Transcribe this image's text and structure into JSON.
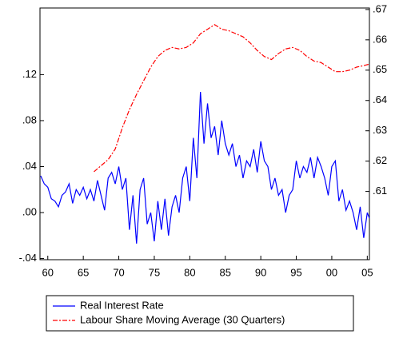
{
  "chart_data": {
    "type": "line",
    "xlim": [
      1958.9,
      2005.3
    ],
    "xticks": [
      {
        "value": 1960,
        "label": "60"
      },
      {
        "value": 1965,
        "label": "65"
      },
      {
        "value": 1970,
        "label": "70"
      },
      {
        "value": 1975,
        "label": "75"
      },
      {
        "value": 1980,
        "label": "80"
      },
      {
        "value": 1985,
        "label": "85"
      },
      {
        "value": 1990,
        "label": "90"
      },
      {
        "value": 1995,
        "label": "95"
      },
      {
        "value": 2000,
        "label": "00"
      },
      {
        "value": 2005,
        "label": "05"
      }
    ],
    "ylim": [
      -0.041,
      0.178
    ],
    "yticks": [
      {
        "value": -0.04,
        "label": "-.04"
      },
      {
        "value": 0,
        "label": ".00"
      },
      {
        "value": 0.04,
        "label": ".04"
      },
      {
        "value": 0.08,
        "label": ".08"
      },
      {
        "value": 0.12,
        "label": ".12"
      }
    ],
    "y2lim": [
      0.5875,
      0.6705
    ],
    "y2ticks": [
      {
        "value": 0.61,
        "label": ".61"
      },
      {
        "value": 0.62,
        "label": ".62"
      },
      {
        "value": 0.63,
        "label": ".63"
      },
      {
        "value": 0.64,
        "label": ".64"
      },
      {
        "value": 0.65,
        "label": ".65"
      },
      {
        "value": 0.66,
        "label": ".66"
      },
      {
        "value": 0.67,
        "label": ".67"
      }
    ],
    "series": [
      {
        "name": "Real Interest Rate",
        "color": "#0000ff",
        "x": [
          1959,
          1959.5,
          1960,
          1960.5,
          1961,
          1961.5,
          1962,
          1962.5,
          1963,
          1963.5,
          1964,
          1964.5,
          1965,
          1965.5,
          1966,
          1966.5,
          1967,
          1967.5,
          1968,
          1968.5,
          1969,
          1969.5,
          1970,
          1970.5,
          1971,
          1971.5,
          1972,
          1972.5,
          1973,
          1973.5,
          1974,
          1974.5,
          1975,
          1975.5,
          1976,
          1976.5,
          1977,
          1977.5,
          1978,
          1978.5,
          1979,
          1979.5,
          1980,
          1980.5,
          1981,
          1981.5,
          1982,
          1982.5,
          1983,
          1983.5,
          1984,
          1984.5,
          1985,
          1985.5,
          1986,
          1986.5,
          1987,
          1987.5,
          1988,
          1988.5,
          1989,
          1989.5,
          1990,
          1990.5,
          1991,
          1991.5,
          1992,
          1992.5,
          1993,
          1993.5,
          1994,
          1994.5,
          1995,
          1995.5,
          1996,
          1996.5,
          1997,
          1997.5,
          1998,
          1998.5,
          1999,
          1999.5,
          2000,
          2000.5,
          2001,
          2001.5,
          2002,
          2002.5,
          2003,
          2003.5,
          2004,
          2004.5,
          2005,
          2005.3
        ],
        "values": [
          0.032,
          0.025,
          0.022,
          0.012,
          0.01,
          0.005,
          0.015,
          0.018,
          0.025,
          0.008,
          0.02,
          0.015,
          0.022,
          0.012,
          0.02,
          0.01,
          0.028,
          0.015,
          0.002,
          0.03,
          0.035,
          0.025,
          0.04,
          0.02,
          0.03,
          -0.015,
          0.015,
          -0.027,
          0.02,
          0.03,
          -0.01,
          0.0,
          -0.025,
          0.01,
          -0.015,
          0.012,
          -0.02,
          0.005,
          0.015,
          0.0,
          0.03,
          0.04,
          0.01,
          0.065,
          0.03,
          0.105,
          0.06,
          0.095,
          0.065,
          0.075,
          0.05,
          0.08,
          0.06,
          0.05,
          0.06,
          0.04,
          0.05,
          0.03,
          0.045,
          0.04,
          0.055,
          0.035,
          0.062,
          0.045,
          0.04,
          0.02,
          0.03,
          0.015,
          0.02,
          0.0,
          0.015,
          0.02,
          0.045,
          0.03,
          0.04,
          0.035,
          0.048,
          0.03,
          0.048,
          0.04,
          0.03,
          0.015,
          0.04,
          0.045,
          0.01,
          0.02,
          0.002,
          0.01,
          0.0,
          -0.015,
          0.005,
          -0.022,
          0.0,
          -0.005
        ]
      },
      {
        "name": "Labour Share Moving Average (30 Quarters)",
        "color": "#ff0000",
        "axis": "y2",
        "dashed": true,
        "x": [
          1966.5,
          1967.5,
          1968.5,
          1969.5,
          1970.5,
          1971.5,
          1972.5,
          1973.5,
          1974.5,
          1975.5,
          1976.5,
          1977.5,
          1978.5,
          1979.5,
          1980.5,
          1981.5,
          1982.5,
          1983.5,
          1984.5,
          1985.5,
          1986.5,
          1987.5,
          1988.5,
          1989.5,
          1990.5,
          1991.5,
          1992.5,
          1993.5,
          1994.5,
          1995.5,
          1996.5,
          1997.5,
          1998.5,
          1999.5,
          2000.5,
          2001.5,
          2002.5,
          2003.5,
          2004.5,
          2005.3
        ],
        "values": [
          0.6165,
          0.6185,
          0.6205,
          0.624,
          0.631,
          0.637,
          0.642,
          0.6465,
          0.651,
          0.6545,
          0.6565,
          0.6575,
          0.657,
          0.6575,
          0.659,
          0.662,
          0.6635,
          0.665,
          0.6635,
          0.663,
          0.662,
          0.661,
          0.659,
          0.6565,
          0.6545,
          0.6535,
          0.6555,
          0.657,
          0.6575,
          0.6565,
          0.6545,
          0.653,
          0.6525,
          0.651,
          0.6495,
          0.6495,
          0.65,
          0.651,
          0.6515,
          0.652
        ]
      }
    ]
  }
}
